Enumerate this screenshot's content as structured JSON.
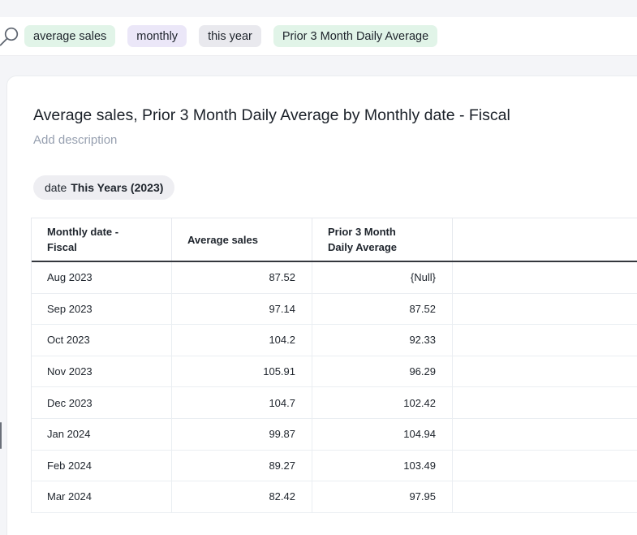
{
  "search_bar": {
    "tokens": [
      {
        "label": "average sales",
        "color": "#E1F4E8"
      },
      {
        "label": "monthly",
        "color": "#EBE7F8"
      },
      {
        "label": "this year",
        "color": "#E9E9EE"
      },
      {
        "label": "Prior 3 Month Daily Average",
        "color": "#E1F4E8"
      }
    ]
  },
  "answer": {
    "title": "Average sales, Prior 3 Month Daily Average by Monthly date - Fiscal",
    "description_placeholder": "Add description",
    "filter": {
      "prefix": "date",
      "value": "This Years (2023)"
    }
  },
  "table": {
    "columns": [
      "Monthly date -\nFiscal",
      "Average sales",
      "Prior 3 Month\nDaily Average"
    ],
    "rows": [
      [
        "Aug 2023",
        "87.52",
        "{Null}"
      ],
      [
        "Sep 2023",
        "97.14",
        "87.52"
      ],
      [
        "Oct 2023",
        "104.2",
        "92.33"
      ],
      [
        "Nov 2023",
        "105.91",
        "96.29"
      ],
      [
        "Dec 2023",
        "104.7",
        "102.42"
      ],
      [
        "Jan 2024",
        "99.87",
        "104.94"
      ],
      [
        "Feb 2024",
        "89.27",
        "103.49"
      ],
      [
        "Mar 2024",
        "82.42",
        "97.95"
      ]
    ]
  },
  "colors": {
    "page_background": "#F4F5F8",
    "card_background": "#FFFFFF",
    "token_green": "#E1F4E8",
    "token_purple": "#EBE7F8",
    "token_gray": "#E9E9EE",
    "filter_pill": "#EEEEF2",
    "header_underline": "#34373D",
    "grid_border": "#EAEEF2",
    "muted_text": "#97A0B0",
    "text": "#20262E"
  }
}
